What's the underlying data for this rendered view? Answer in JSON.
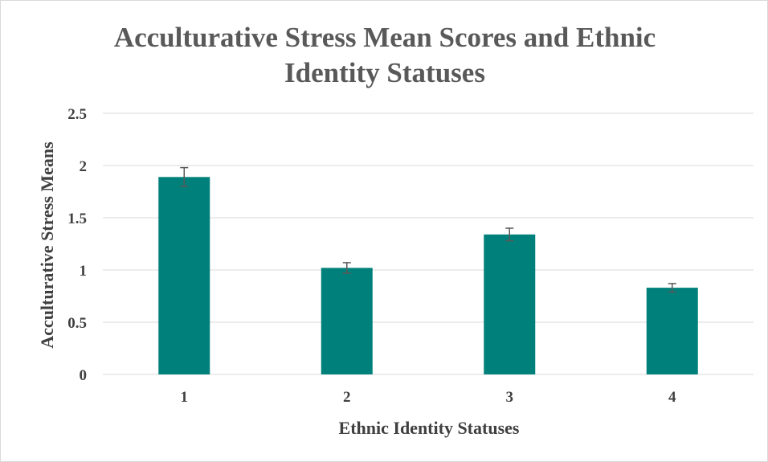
{
  "chart_data": {
    "type": "bar",
    "title_lines": [
      "Acculturative Stress Mean Scores and Ethnic",
      "Identity Statuses"
    ],
    "xlabel": "Ethnic Identity Statuses",
    "ylabel": "Acculturative Stress Means",
    "categories": [
      "1",
      "2",
      "3",
      "4"
    ],
    "values": [
      1.89,
      1.02,
      1.34,
      0.83
    ],
    "error": [
      0.09,
      0.05,
      0.06,
      0.04
    ],
    "ylim": [
      0,
      2.5
    ],
    "yticks": [
      0,
      0.5,
      1,
      1.5,
      2,
      2.5
    ],
    "ytick_labels": [
      "0",
      "0.5",
      "1",
      "1.5",
      "2",
      "2.5"
    ],
    "grid": true,
    "legend": "none",
    "bar_color": "#00807A",
    "error_color": "#595959",
    "grid_color": "#d9d9d9"
  }
}
